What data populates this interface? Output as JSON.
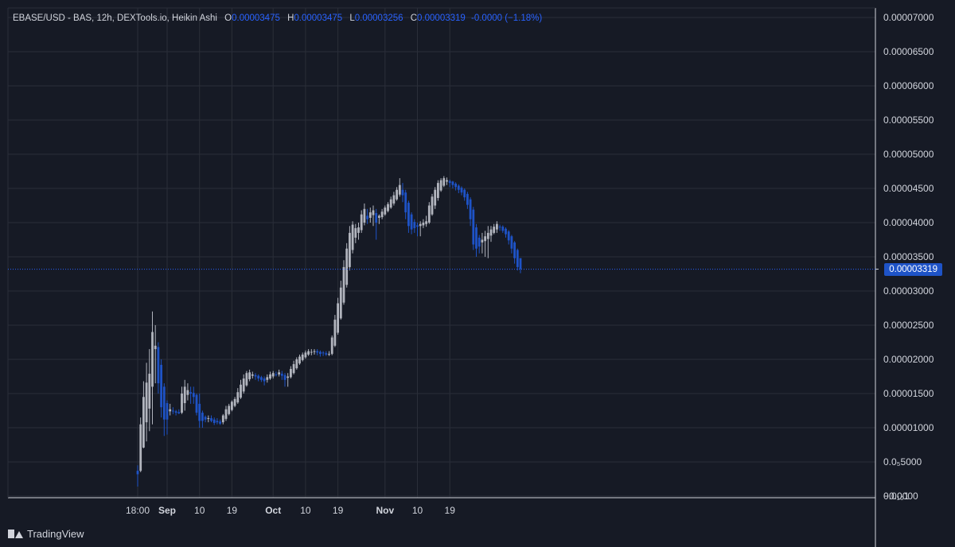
{
  "legend": {
    "symbol": "EBASE/USD - BAS, 12h, DEXTools.io, Heikin Ashi",
    "open_label": "O",
    "open": "0.00003475",
    "high_label": "H",
    "high": "0.00003475",
    "low_label": "L",
    "low": "0.00003256",
    "close_label": "C",
    "close": "0.00003319",
    "change": "-0.0000 (−1.18%)"
  },
  "current_price_label": "0.00003319",
  "brand": "TradingView",
  "colors": {
    "background": "#161a25",
    "up": "#b2b5be",
    "down": "#1e53c7",
    "accent": "#2962ff",
    "grid": "#2a2e39"
  },
  "chart_data": {
    "type": "candlestick",
    "style": "Heikin Ashi",
    "interval": "12h",
    "ylim": [
      0,
      7e-05
    ],
    "y_tick_labels": [
      "0.00007000",
      "0.00006500",
      "0.00006000",
      "0.00005500",
      "0.00005000",
      "0.00004500",
      "0.00004000",
      "0.00003500",
      "0.00003000",
      "0.00002500",
      "0.00002000",
      "0.00001500",
      "0.00001000",
      "0.0₅5000",
      "0.0₁₀1",
      "−0.0000"
    ],
    "y_tick_values": [
      7e-05,
      6.5e-05,
      6e-05,
      5.5e-05,
      5e-05,
      4.5e-05,
      4e-05,
      3.5e-05,
      3e-05,
      2.5e-05,
      2e-05,
      1.5e-05,
      1e-05,
      5e-06,
      1e-10,
      0
    ],
    "x_tick_labels": [
      "18:00",
      "Sep",
      "10",
      "19",
      "Oct",
      "10",
      "19",
      "Nov",
      "10",
      "19"
    ],
    "x_tick_bold": [
      false,
      true,
      false,
      false,
      true,
      false,
      false,
      true,
      false,
      false
    ],
    "x_tick_index": [
      0,
      10,
      21,
      32,
      46,
      57,
      68,
      84,
      95,
      106
    ],
    "last_price": 3.319e-05,
    "grid": true,
    "candles": [
      [
        3.7e-06,
        4.5e-06,
        1.4e-06,
        3.2e-06
      ],
      [
        3.7e-06,
        1.15e-05,
        3.5e-06,
        1.05e-05
      ],
      [
        7.1e-06,
        1.68e-05,
        7e-06,
        1.45e-05
      ],
      [
        1.08e-05,
        1.95e-05,
        8e-06,
        1.66e-05
      ],
      [
        1.28e-05,
        2.15e-05,
        9.5e-06,
        1.79e-05
      ],
      [
        1.6e-05,
        2.7e-05,
        1.05e-05,
        2.4e-05
      ],
      [
        2.15e-05,
        2.5e-05,
        1.65e-05,
        2.2e-05
      ],
      [
        2.18e-05,
        2.25e-05,
        1.5e-05,
        1.65e-05
      ],
      [
        1.92e-05,
        2e-05,
        1.15e-05,
        1.3e-05
      ],
      [
        1.6e-05,
        1.65e-05,
        8.8e-06,
        1.12e-05
      ],
      [
        1.36e-05,
        1.4e-05,
        9e-06,
        1.12e-05
      ],
      [
        1.24e-05,
        1.35e-05,
        1.18e-05,
        1.27e-05
      ],
      [
        1.25e-05,
        1.3e-05,
        1.2e-05,
        1.24e-05
      ],
      [
        1.24e-05,
        1.26e-05,
        1.18e-05,
        1.22e-05
      ],
      [
        1.23e-05,
        1.27e-05,
        1.2e-05,
        1.21e-05
      ],
      [
        1.22e-05,
        1.6e-05,
        1.2e-05,
        1.5e-05
      ],
      [
        1.36e-05,
        1.7e-05,
        1.25e-05,
        1.6e-05
      ],
      [
        1.48e-05,
        1.65e-05,
        1.4e-05,
        1.55e-05
      ],
      [
        1.52e-05,
        1.6e-05,
        1.35e-05,
        1.5e-05
      ],
      [
        1.51e-05,
        1.6e-05,
        1.35e-05,
        1.45e-05
      ],
      [
        1.48e-05,
        1.5e-05,
        1.18e-05,
        1.22e-05
      ],
      [
        1.35e-05,
        1.5e-05,
        1e-05,
        1.1e-05
      ],
      [
        1.22e-05,
        1.25e-05,
        1e-05,
        1.1e-05
      ],
      [
        1.16e-05,
        1.18e-05,
        1.08e-05,
        1.12e-05
      ],
      [
        1.14e-05,
        1.18e-05,
        1.08e-05,
        1.14e-05
      ],
      [
        1.14e-05,
        1.18e-05,
        1.08e-05,
        1.1e-05
      ],
      [
        1.12e-05,
        1.15e-05,
        1.04e-05,
        1.07e-05
      ],
      [
        1.1e-05,
        1.14e-05,
        1.05e-05,
        1.08e-05
      ],
      [
        1.09e-05,
        1.12e-05,
        1.04e-05,
        1.06e-05
      ],
      [
        1.08e-05,
        1.2e-05,
        1.05e-05,
        1.18e-05
      ],
      [
        1.13e-05,
        1.32e-05,
        1.1e-05,
        1.27e-05
      ],
      [
        1.2e-05,
        1.35e-05,
        1.18e-05,
        1.32e-05
      ],
      [
        1.26e-05,
        1.4e-05,
        1.24e-05,
        1.38e-05
      ],
      [
        1.32e-05,
        1.45e-05,
        1.3e-05,
        1.42e-05
      ],
      [
        1.37e-05,
        1.58e-05,
        1.35e-05,
        1.52e-05
      ],
      [
        1.44e-05,
        1.7e-05,
        1.42e-05,
        1.63e-05
      ],
      [
        1.53e-05,
        1.78e-05,
        1.5e-05,
        1.72e-05
      ],
      [
        1.62e-05,
        1.83e-05,
        1.6e-05,
        1.8e-05
      ],
      [
        1.71e-05,
        1.85e-05,
        1.68e-05,
        1.81e-05
      ],
      [
        1.76e-05,
        1.82e-05,
        1.72e-05,
        1.78e-05
      ],
      [
        1.77e-05,
        1.8e-05,
        1.7e-05,
        1.75e-05
      ],
      [
        1.76e-05,
        1.78e-05,
        1.68e-05,
        1.72e-05
      ],
      [
        1.74e-05,
        1.76e-05,
        1.67e-05,
        1.7e-05
      ],
      [
        1.72e-05,
        1.75e-05,
        1.62e-05,
        1.68e-05
      ],
      [
        1.7e-05,
        1.78e-05,
        1.66e-05,
        1.74e-05
      ],
      [
        1.72e-05,
        1.82e-05,
        1.7e-05,
        1.78e-05
      ],
      [
        1.75e-05,
        1.83e-05,
        1.72e-05,
        1.8e-05
      ],
      [
        1.78e-05,
        1.82e-05,
        1.75e-05,
        1.77e-05
      ],
      [
        1.78e-05,
        1.85e-05,
        1.75e-05,
        1.81e-05
      ],
      [
        1.79e-05,
        1.83e-05,
        1.7e-05,
        1.76e-05
      ],
      [
        1.77e-05,
        1.8e-05,
        1.6e-05,
        1.7e-05
      ],
      [
        1.73e-05,
        1.8e-05,
        1.6e-05,
        1.75e-05
      ],
      [
        1.74e-05,
        1.9e-05,
        1.72e-05,
        1.86e-05
      ],
      [
        1.8e-05,
        1.98e-05,
        1.78e-05,
        1.93e-05
      ],
      [
        1.87e-05,
        2.03e-05,
        1.85e-05,
        2e-05
      ],
      [
        1.94e-05,
        2.07e-05,
        1.92e-05,
        2.04e-05
      ],
      [
        1.99e-05,
        2.1e-05,
        1.97e-05,
        2.07e-05
      ],
      [
        2.03e-05,
        2.13e-05,
        2.01e-05,
        2.1e-05
      ],
      [
        2.07e-05,
        2.15e-05,
        2.05e-05,
        2.12e-05
      ],
      [
        2.1e-05,
        2.15e-05,
        2.06e-05,
        2.11e-05
      ],
      [
        2.11e-05,
        2.15e-05,
        2.07e-05,
        2.12e-05
      ],
      [
        2.12e-05,
        2.15e-05,
        2.06e-05,
        2.1e-05
      ],
      [
        2.11e-05,
        2.13e-05,
        2.04e-05,
        2.08e-05
      ],
      [
        2.1e-05,
        2.12e-05,
        2.05e-05,
        2.09e-05
      ],
      [
        2.09e-05,
        2.12e-05,
        2.05e-05,
        2.07e-05
      ],
      [
        2.08e-05,
        2.12e-05,
        2.05e-05,
        2.08e-05
      ],
      [
        2.08e-05,
        2.35e-05,
        2.06e-05,
        2.32e-05
      ],
      [
        2.2e-05,
        2.65e-05,
        2.18e-05,
        2.58e-05
      ],
      [
        2.39e-05,
        2.9e-05,
        2.36e-05,
        2.82e-05
      ],
      [
        2.6e-05,
        3.15e-05,
        2.58e-05,
        3.05e-05
      ],
      [
        2.83e-05,
        3.45e-05,
        2.8e-05,
        3.35e-05
      ],
      [
        3.09e-05,
        3.7e-05,
        3.05e-05,
        3.62e-05
      ],
      [
        3.35e-05,
        3.95e-05,
        3.3e-05,
        3.85e-05
      ],
      [
        3.6e-05,
        4.02e-05,
        3.55e-05,
        3.97e-05
      ],
      [
        3.78e-05,
        3.98e-05,
        3.7e-05,
        3.92e-05
      ],
      [
        3.85e-05,
        4e-05,
        3.75e-05,
        3.93e-05
      ],
      [
        3.89e-05,
        4.18e-05,
        3.85e-05,
        4.12e-05
      ],
      [
        4e-05,
        4.28e-05,
        3.96e-05,
        4.2e-05
      ],
      [
        4.1e-05,
        4.2e-05,
        3.98e-05,
        4.05e-05
      ],
      [
        4.07e-05,
        4.22e-05,
        4e-05,
        4.15e-05
      ],
      [
        4.11e-05,
        4.25e-05,
        3.95e-05,
        4.18e-05
      ],
      [
        4.14e-05,
        4.2e-05,
        3.75e-05,
        4e-05
      ],
      [
        4.07e-05,
        4.12e-05,
        3.98e-05,
        4.1e-05
      ],
      [
        4.08e-05,
        4.2e-05,
        4.05e-05,
        4.16e-05
      ],
      [
        4.12e-05,
        4.25e-05,
        4.1e-05,
        4.22e-05
      ],
      [
        4.17e-05,
        4.3e-05,
        4.15e-05,
        4.27e-05
      ],
      [
        4.22e-05,
        4.38e-05,
        4.2e-05,
        4.34e-05
      ],
      [
        4.28e-05,
        4.45e-05,
        4.25e-05,
        4.4e-05
      ],
      [
        4.34e-05,
        4.52e-05,
        4.32e-05,
        4.48e-05
      ],
      [
        4.41e-05,
        4.65e-05,
        4.38e-05,
        4.55e-05
      ],
      [
        4.48e-05,
        4.58e-05,
        4.3e-05,
        4.4e-05
      ],
      [
        4.44e-05,
        4.48e-05,
        4.05e-05,
        4.15e-05
      ],
      [
        4.29e-05,
        4.32e-05,
        3.85e-05,
        3.95e-05
      ],
      [
        4.12e-05,
        4.15e-05,
        3.83e-05,
        3.9e-05
      ],
      [
        4.01e-05,
        4.05e-05,
        3.85e-05,
        3.92e-05
      ],
      [
        3.96e-05,
        4e-05,
        3.8e-05,
        3.94e-05
      ],
      [
        3.95e-05,
        4.02e-05,
        3.8e-05,
        3.98e-05
      ],
      [
        3.96e-05,
        4.05e-05,
        3.92e-05,
        4e-05
      ],
      [
        3.98e-05,
        4.1e-05,
        3.94e-05,
        4.02e-05
      ],
      [
        4e-05,
        4.3e-05,
        3.98e-05,
        4.25e-05
      ],
      [
        4.12e-05,
        4.42e-05,
        4.1e-05,
        4.38e-05
      ],
      [
        4.25e-05,
        4.52e-05,
        4.2e-05,
        4.48e-05
      ],
      [
        4.36e-05,
        4.62e-05,
        4.32e-05,
        4.58e-05
      ],
      [
        4.47e-05,
        4.65e-05,
        4.45e-05,
        4.62e-05
      ],
      [
        4.54e-05,
        4.68e-05,
        4.52e-05,
        4.65e-05
      ],
      [
        4.6e-05,
        4.66e-05,
        4.55e-05,
        4.62e-05
      ],
      [
        4.61e-05,
        4.63e-05,
        4.52e-05,
        4.58e-05
      ],
      [
        4.6e-05,
        4.61e-05,
        4.5e-05,
        4.55e-05
      ],
      [
        4.57e-05,
        4.59e-05,
        4.47e-05,
        4.52e-05
      ],
      [
        4.54e-05,
        4.56e-05,
        4.43e-05,
        4.48e-05
      ],
      [
        4.51e-05,
        4.53e-05,
        4.4e-05,
        4.44e-05
      ],
      [
        4.48e-05,
        4.5e-05,
        4.32e-05,
        4.37e-05
      ],
      [
        4.42e-05,
        4.45e-05,
        4.2e-05,
        4.26e-05
      ],
      [
        4.34e-05,
        4.37e-05,
        3.95e-05,
        4.05e-05
      ],
      [
        4.19e-05,
        4.23e-05,
        3.6e-05,
        3.68e-05
      ],
      [
        3.93e-05,
        3.98e-05,
        3.5e-05,
        3.62e-05
      ],
      [
        3.78e-05,
        3.82e-05,
        3.55e-05,
        3.65e-05
      ],
      [
        3.71e-05,
        3.85e-05,
        3.55e-05,
        3.75e-05
      ],
      [
        3.73e-05,
        3.88e-05,
        3.5e-05,
        3.8e-05
      ],
      [
        3.76e-05,
        3.95e-05,
        3.48e-05,
        3.85e-05
      ],
      [
        3.81e-05,
        3.95e-05,
        3.72e-05,
        3.9e-05
      ],
      [
        3.85e-05,
        3.98e-05,
        3.83e-05,
        3.94e-05
      ],
      [
        3.9e-05,
        4.02e-05,
        3.85e-05,
        3.98e-05
      ],
      [
        3.94e-05,
        3.97e-05,
        3.88e-05,
        3.93e-05
      ],
      [
        3.94e-05,
        3.96e-05,
        3.85e-05,
        3.88e-05
      ],
      [
        3.91e-05,
        3.93e-05,
        3.78e-05,
        3.83e-05
      ],
      [
        3.87e-05,
        3.89e-05,
        3.68e-05,
        3.74e-05
      ],
      [
        3.8e-05,
        3.82e-05,
        3.55e-05,
        3.62e-05
      ],
      [
        3.71e-05,
        3.73e-05,
        3.4e-05,
        3.48e-05
      ],
      [
        3.6e-05,
        3.62e-05,
        3.3e-05,
        3.35e-05
      ],
      [
        3.48e-05,
        3.48e-05,
        3.26e-05,
        3.32e-05
      ]
    ]
  }
}
